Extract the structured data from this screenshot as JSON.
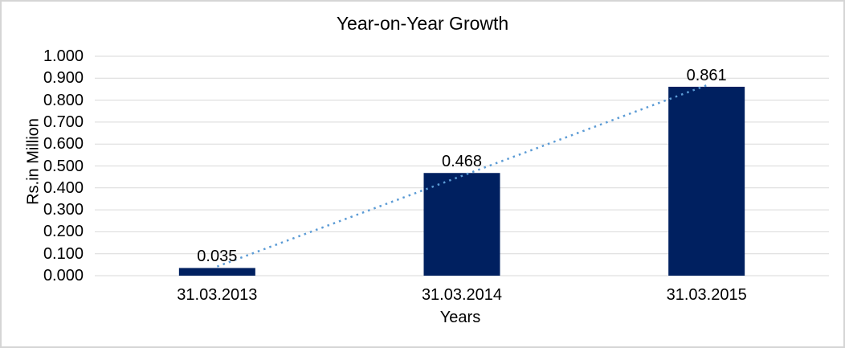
{
  "window": {
    "background_color": "#FFFFFF",
    "border_color": "#D5D5D5"
  },
  "chart_data": {
    "type": "bar",
    "title": "Year-on-Year Growth",
    "xlabel": "Years",
    "ylabel": "Rs.in Million",
    "categories": [
      "31.03.2013",
      "31.03.2014",
      "31.03.2015"
    ],
    "values": [
      0.035,
      0.468,
      0.861
    ],
    "data_labels": [
      "0.035",
      "0.468",
      "0.861"
    ],
    "ylim": [
      0,
      1
    ],
    "ytick_step": 0.1,
    "yticks": [
      "0.000",
      "0.100",
      "0.200",
      "0.300",
      "0.400",
      "0.500",
      "0.600",
      "0.700",
      "0.800",
      "0.900",
      "1.000"
    ],
    "grid": true,
    "legend": false,
    "bar_color": "#002060",
    "gridline_color": "#D9D9D9",
    "text_color": "#000000",
    "trendline": {
      "type": "linear",
      "style": "dotted",
      "color": "#5B9BD5"
    }
  }
}
